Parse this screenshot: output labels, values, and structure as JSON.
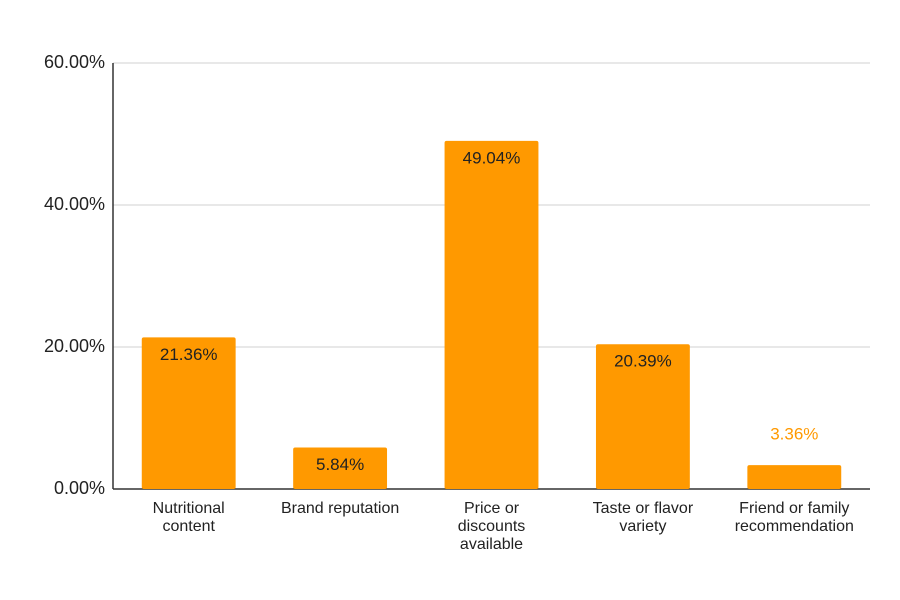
{
  "chart_data": {
    "type": "bar",
    "categories": [
      [
        "Nutritional",
        "content"
      ],
      [
        "Brand reputation"
      ],
      [
        "Price or",
        "discounts",
        "available"
      ],
      [
        "Taste or flavor",
        "variety"
      ],
      [
        "Friend or family",
        "recommendation"
      ]
    ],
    "values": [
      21.36,
      5.84,
      49.04,
      20.39,
      3.36
    ],
    "data_labels": [
      "21.36%",
      "5.84%",
      "49.04%",
      "20.39%",
      "3.36%"
    ],
    "ylim": [
      0,
      60
    ],
    "yticks": [
      0,
      20,
      40,
      60
    ],
    "ytick_labels": [
      "0.00%",
      "20.00%",
      "40.00%",
      "60.00%"
    ],
    "title": "",
    "xlabel": "",
    "ylabel": "",
    "grid": true,
    "legend": "none",
    "colors": {
      "bar": "#ff9900",
      "label_inside": "#222222",
      "label_outside": "#ff9900",
      "grid": "#d9d9d9",
      "axis": "#333333"
    }
  }
}
